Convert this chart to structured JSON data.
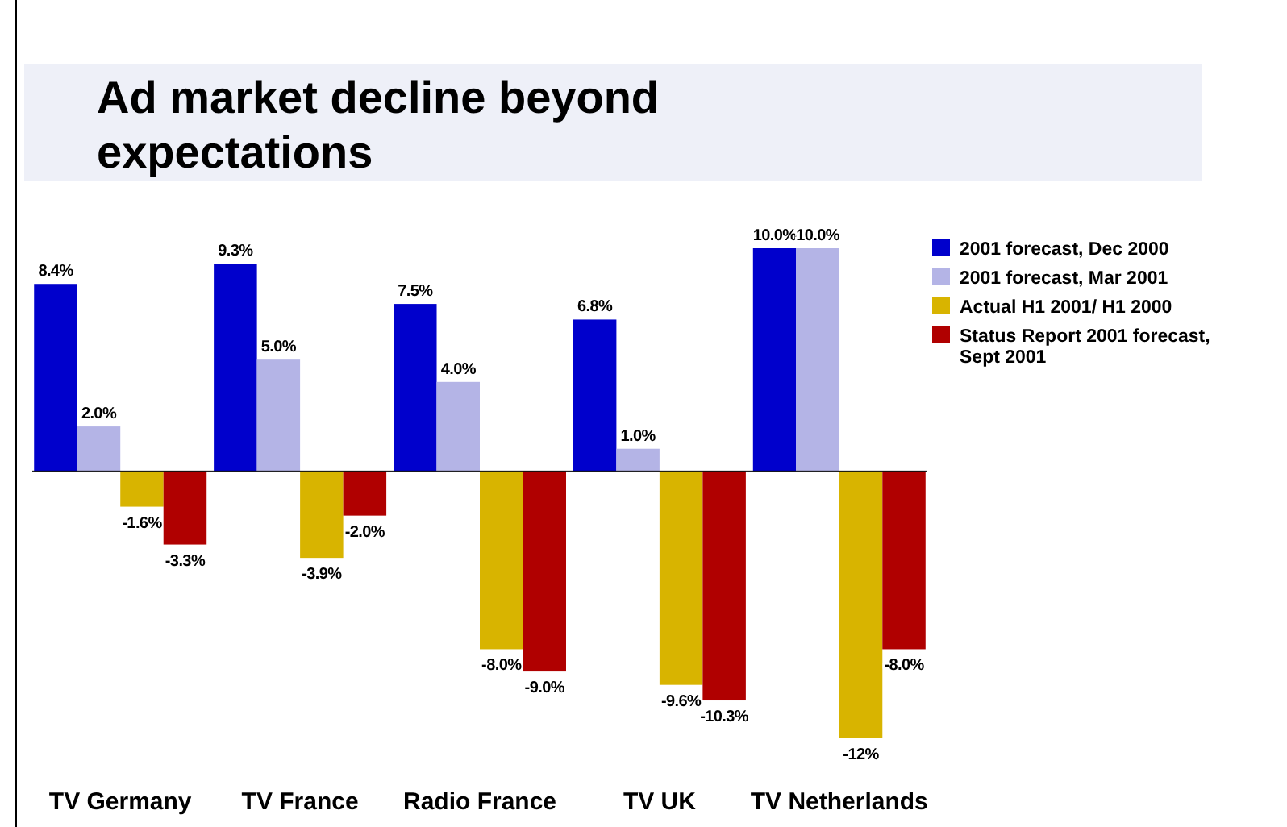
{
  "chart_data": {
    "type": "bar",
    "title": "Ad market decline beyond expectations",
    "categories": [
      "TV Germany",
      "TV France",
      "Radio France",
      "TV UK",
      "TV Netherlands"
    ],
    "series": [
      {
        "name": "2001 forecast, Dec 2000",
        "color": "#0000cc",
        "values": [
          8.4,
          9.3,
          7.5,
          6.8,
          10.0
        ],
        "value_labels": [
          "8.4%",
          "9.3%",
          "7.5%",
          "6.8%",
          "10.0%"
        ]
      },
      {
        "name": "2001 forecast, Mar 2001",
        "color": "#b4b4e6",
        "values": [
          2.0,
          5.0,
          4.0,
          1.0,
          10.0
        ],
        "value_labels": [
          "2.0%",
          "5.0%",
          "4.0%",
          "1.0%",
          "10.0%"
        ]
      },
      {
        "name": "Actual H1 2001/ H1 2000",
        "color": "#d8b400",
        "values": [
          -1.6,
          -3.9,
          -8.0,
          -9.6,
          -12
        ],
        "value_labels": [
          "-1.6%",
          "-3.9%",
          "-8.0%",
          "-9.6%",
          "-12%"
        ]
      },
      {
        "name": "Status Report 2001 forecast, Sept 2001",
        "color": "#b00000",
        "values": [
          -3.3,
          -2.0,
          -9.0,
          -10.3,
          -8.0
        ],
        "value_labels": [
          "-3.3%",
          "-2.0%",
          "-9.0%",
          "-10.3%",
          "-8.0%"
        ]
      }
    ],
    "legend": "top right"
  }
}
